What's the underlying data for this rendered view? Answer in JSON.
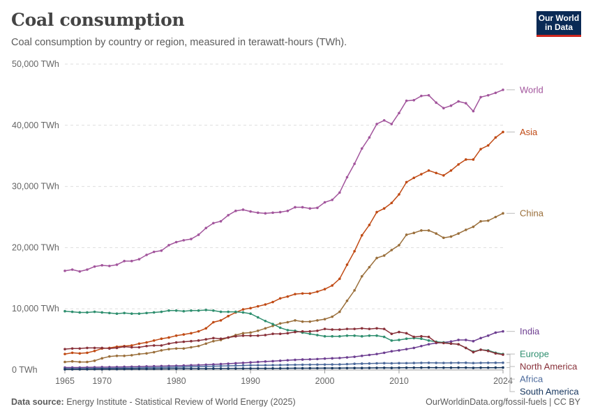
{
  "header": {
    "title": "Coal consumption",
    "subtitle": "Coal consumption by country or region, measured in terawatt-hours (TWh).",
    "logo_line1": "Our World",
    "logo_line2": "in Data"
  },
  "footer": {
    "source_label": "Data source:",
    "source_text": "Energy Institute - Statistical Review of World Energy (2025)",
    "right_text": "OurWorldinData.org/fossil-fuels | CC BY"
  },
  "chart_data": {
    "type": "line",
    "title": "Coal consumption",
    "xlim": [
      1965,
      2024
    ],
    "ylim": [
      0,
      50000
    ],
    "grid": true,
    "x_ticks": [
      {
        "value": 1965,
        "label": "1965"
      },
      {
        "value": 1970,
        "label": "1970"
      },
      {
        "value": 1980,
        "label": "1980"
      },
      {
        "value": 1990,
        "label": "1990"
      },
      {
        "value": 2000,
        "label": "2000"
      },
      {
        "value": 2010,
        "label": "2010"
      },
      {
        "value": 2024,
        "label": "2024"
      }
    ],
    "y_ticks": [
      {
        "value": 0,
        "label": "0 TWh"
      },
      {
        "value": 10000,
        "label": "10,000 TWh"
      },
      {
        "value": 20000,
        "label": "20,000 TWh"
      },
      {
        "value": 30000,
        "label": "30,000 TWh"
      },
      {
        "value": 40000,
        "label": "40,000 TWh"
      },
      {
        "value": 50000,
        "label": "50,000 TWh"
      }
    ],
    "x": [
      1965,
      1966,
      1967,
      1968,
      1969,
      1970,
      1971,
      1972,
      1973,
      1974,
      1975,
      1976,
      1977,
      1978,
      1979,
      1980,
      1981,
      1982,
      1983,
      1984,
      1985,
      1986,
      1987,
      1988,
      1989,
      1990,
      1991,
      1992,
      1993,
      1994,
      1995,
      1996,
      1997,
      1998,
      1999,
      2000,
      2001,
      2002,
      2003,
      2004,
      2005,
      2006,
      2007,
      2008,
      2009,
      2010,
      2011,
      2012,
      2013,
      2014,
      2015,
      2016,
      2017,
      2018,
      2019,
      2020,
      2021,
      2022,
      2023,
      2024
    ],
    "series": [
      {
        "name": "World",
        "color": "#a2559c",
        "values": [
          16200,
          16400,
          16100,
          16400,
          16900,
          17100,
          17000,
          17200,
          17800,
          17800,
          18100,
          18800,
          19300,
          19500,
          20400,
          20900,
          21200,
          21400,
          22100,
          23200,
          24000,
          24300,
          25300,
          26000,
          26200,
          25900,
          25700,
          25600,
          25700,
          25800,
          26000,
          26600,
          26600,
          26400,
          26500,
          27400,
          27800,
          29000,
          31500,
          33700,
          36200,
          38000,
          40200,
          40800,
          40200,
          42000,
          44000,
          44100,
          44800,
          44900,
          43700,
          42800,
          43200,
          43900,
          43600,
          42300,
          44600,
          44900,
          45300,
          45800
        ]
      },
      {
        "name": "Asia",
        "color": "#c04a14",
        "values": [
          2600,
          2800,
          2700,
          2800,
          3100,
          3500,
          3600,
          3800,
          3900,
          4000,
          4300,
          4500,
          4800,
          5100,
          5300,
          5600,
          5800,
          6000,
          6300,
          6800,
          7800,
          8100,
          8800,
          9400,
          9900,
          10100,
          10400,
          10700,
          11100,
          11700,
          12000,
          12400,
          12500,
          12500,
          12800,
          13200,
          13800,
          14900,
          17200,
          19400,
          22000,
          23700,
          25800,
          26400,
          27300,
          28700,
          30700,
          31400,
          32000,
          32600,
          32200,
          31800,
          32600,
          33600,
          34400,
          34400,
          36100,
          36700,
          38000,
          38900
        ]
      },
      {
        "name": "China",
        "color": "#9a6f3b",
        "values": [
          1300,
          1400,
          1300,
          1300,
          1500,
          1900,
          2200,
          2300,
          2300,
          2400,
          2600,
          2700,
          2900,
          3200,
          3400,
          3500,
          3500,
          3700,
          3900,
          4300,
          4700,
          4900,
          5300,
          5700,
          6000,
          6100,
          6400,
          6800,
          7200,
          7600,
          7800,
          8100,
          7900,
          7900,
          8100,
          8300,
          8700,
          9500,
          11300,
          13000,
          15300,
          16800,
          18300,
          18700,
          19600,
          20400,
          22100,
          22400,
          22800,
          22800,
          22300,
          21600,
          21800,
          22300,
          22900,
          23400,
          24300,
          24400,
          25000,
          25600
        ]
      },
      {
        "name": "India",
        "color": "#6d3e91",
        "values": [
          400,
          400,
          400,
          420,
          440,
          460,
          470,
          480,
          500,
          520,
          550,
          580,
          600,
          630,
          650,
          680,
          720,
          760,
          800,
          850,
          900,
          960,
          1020,
          1090,
          1150,
          1230,
          1300,
          1380,
          1430,
          1500,
          1580,
          1650,
          1700,
          1730,
          1780,
          1850,
          1900,
          1950,
          2050,
          2150,
          2300,
          2450,
          2600,
          2800,
          3050,
          3200,
          3400,
          3600,
          3900,
          4200,
          4400,
          4500,
          4650,
          4900,
          4900,
          4700,
          5200,
          5600,
          6100,
          6300
        ]
      },
      {
        "name": "Europe",
        "color": "#2f8f6f",
        "values": [
          9600,
          9500,
          9400,
          9400,
          9500,
          9400,
          9300,
          9200,
          9300,
          9200,
          9200,
          9300,
          9400,
          9500,
          9700,
          9700,
          9600,
          9700,
          9700,
          9800,
          9700,
          9500,
          9500,
          9500,
          9400,
          9200,
          8600,
          8000,
          7500,
          6900,
          6500,
          6400,
          6100,
          5900,
          5700,
          5500,
          5500,
          5500,
          5600,
          5600,
          5500,
          5600,
          5600,
          5400,
          4800,
          4900,
          5100,
          5200,
          5100,
          4800,
          4600,
          4500,
          4300,
          4200,
          3600,
          3000,
          3300,
          3200,
          2800,
          2600
        ]
      },
      {
        "name": "North America",
        "color": "#883039",
        "values": [
          3400,
          3500,
          3500,
          3600,
          3600,
          3600,
          3500,
          3600,
          3800,
          3700,
          3700,
          3900,
          4000,
          4000,
          4300,
          4500,
          4600,
          4700,
          4800,
          5000,
          5200,
          5100,
          5300,
          5500,
          5600,
          5600,
          5600,
          5700,
          5900,
          5900,
          6000,
          6200,
          6300,
          6300,
          6400,
          6700,
          6600,
          6600,
          6700,
          6700,
          6800,
          6700,
          6800,
          6700,
          5900,
          6200,
          6000,
          5400,
          5500,
          5400,
          4500,
          4400,
          4300,
          4200,
          3600,
          2900,
          3300,
          3100,
          2700,
          2500
        ]
      },
      {
        "name": "Africa",
        "color": "#4c6a9c",
        "values": [
          200,
          210,
          220,
          230,
          240,
          260,
          270,
          280,
          300,
          320,
          340,
          360,
          380,
          400,
          430,
          460,
          490,
          520,
          550,
          580,
          610,
          640,
          670,
          700,
          730,
          760,
          770,
          780,
          790,
          800,
          820,
          840,
          850,
          860,
          870,
          880,
          890,
          900,
          950,
          1000,
          1030,
          1050,
          1080,
          1100,
          1080,
          1100,
          1110,
          1130,
          1150,
          1160,
          1150,
          1140,
          1150,
          1160,
          1170,
          1120,
          1150,
          1160,
          1170,
          1180
        ]
      },
      {
        "name": "South America",
        "color": "#18375f",
        "values": [
          100,
          100,
          105,
          110,
          115,
          120,
          125,
          130,
          140,
          150,
          155,
          160,
          165,
          170,
          180,
          190,
          195,
          200,
          205,
          210,
          220,
          225,
          230,
          235,
          240,
          245,
          250,
          255,
          260,
          265,
          270,
          280,
          285,
          290,
          290,
          300,
          300,
          300,
          310,
          320,
          320,
          330,
          340,
          350,
          330,
          350,
          360,
          370,
          380,
          390,
          380,
          370,
          370,
          380,
          380,
          340,
          370,
          370,
          380,
          390
        ]
      }
    ]
  }
}
